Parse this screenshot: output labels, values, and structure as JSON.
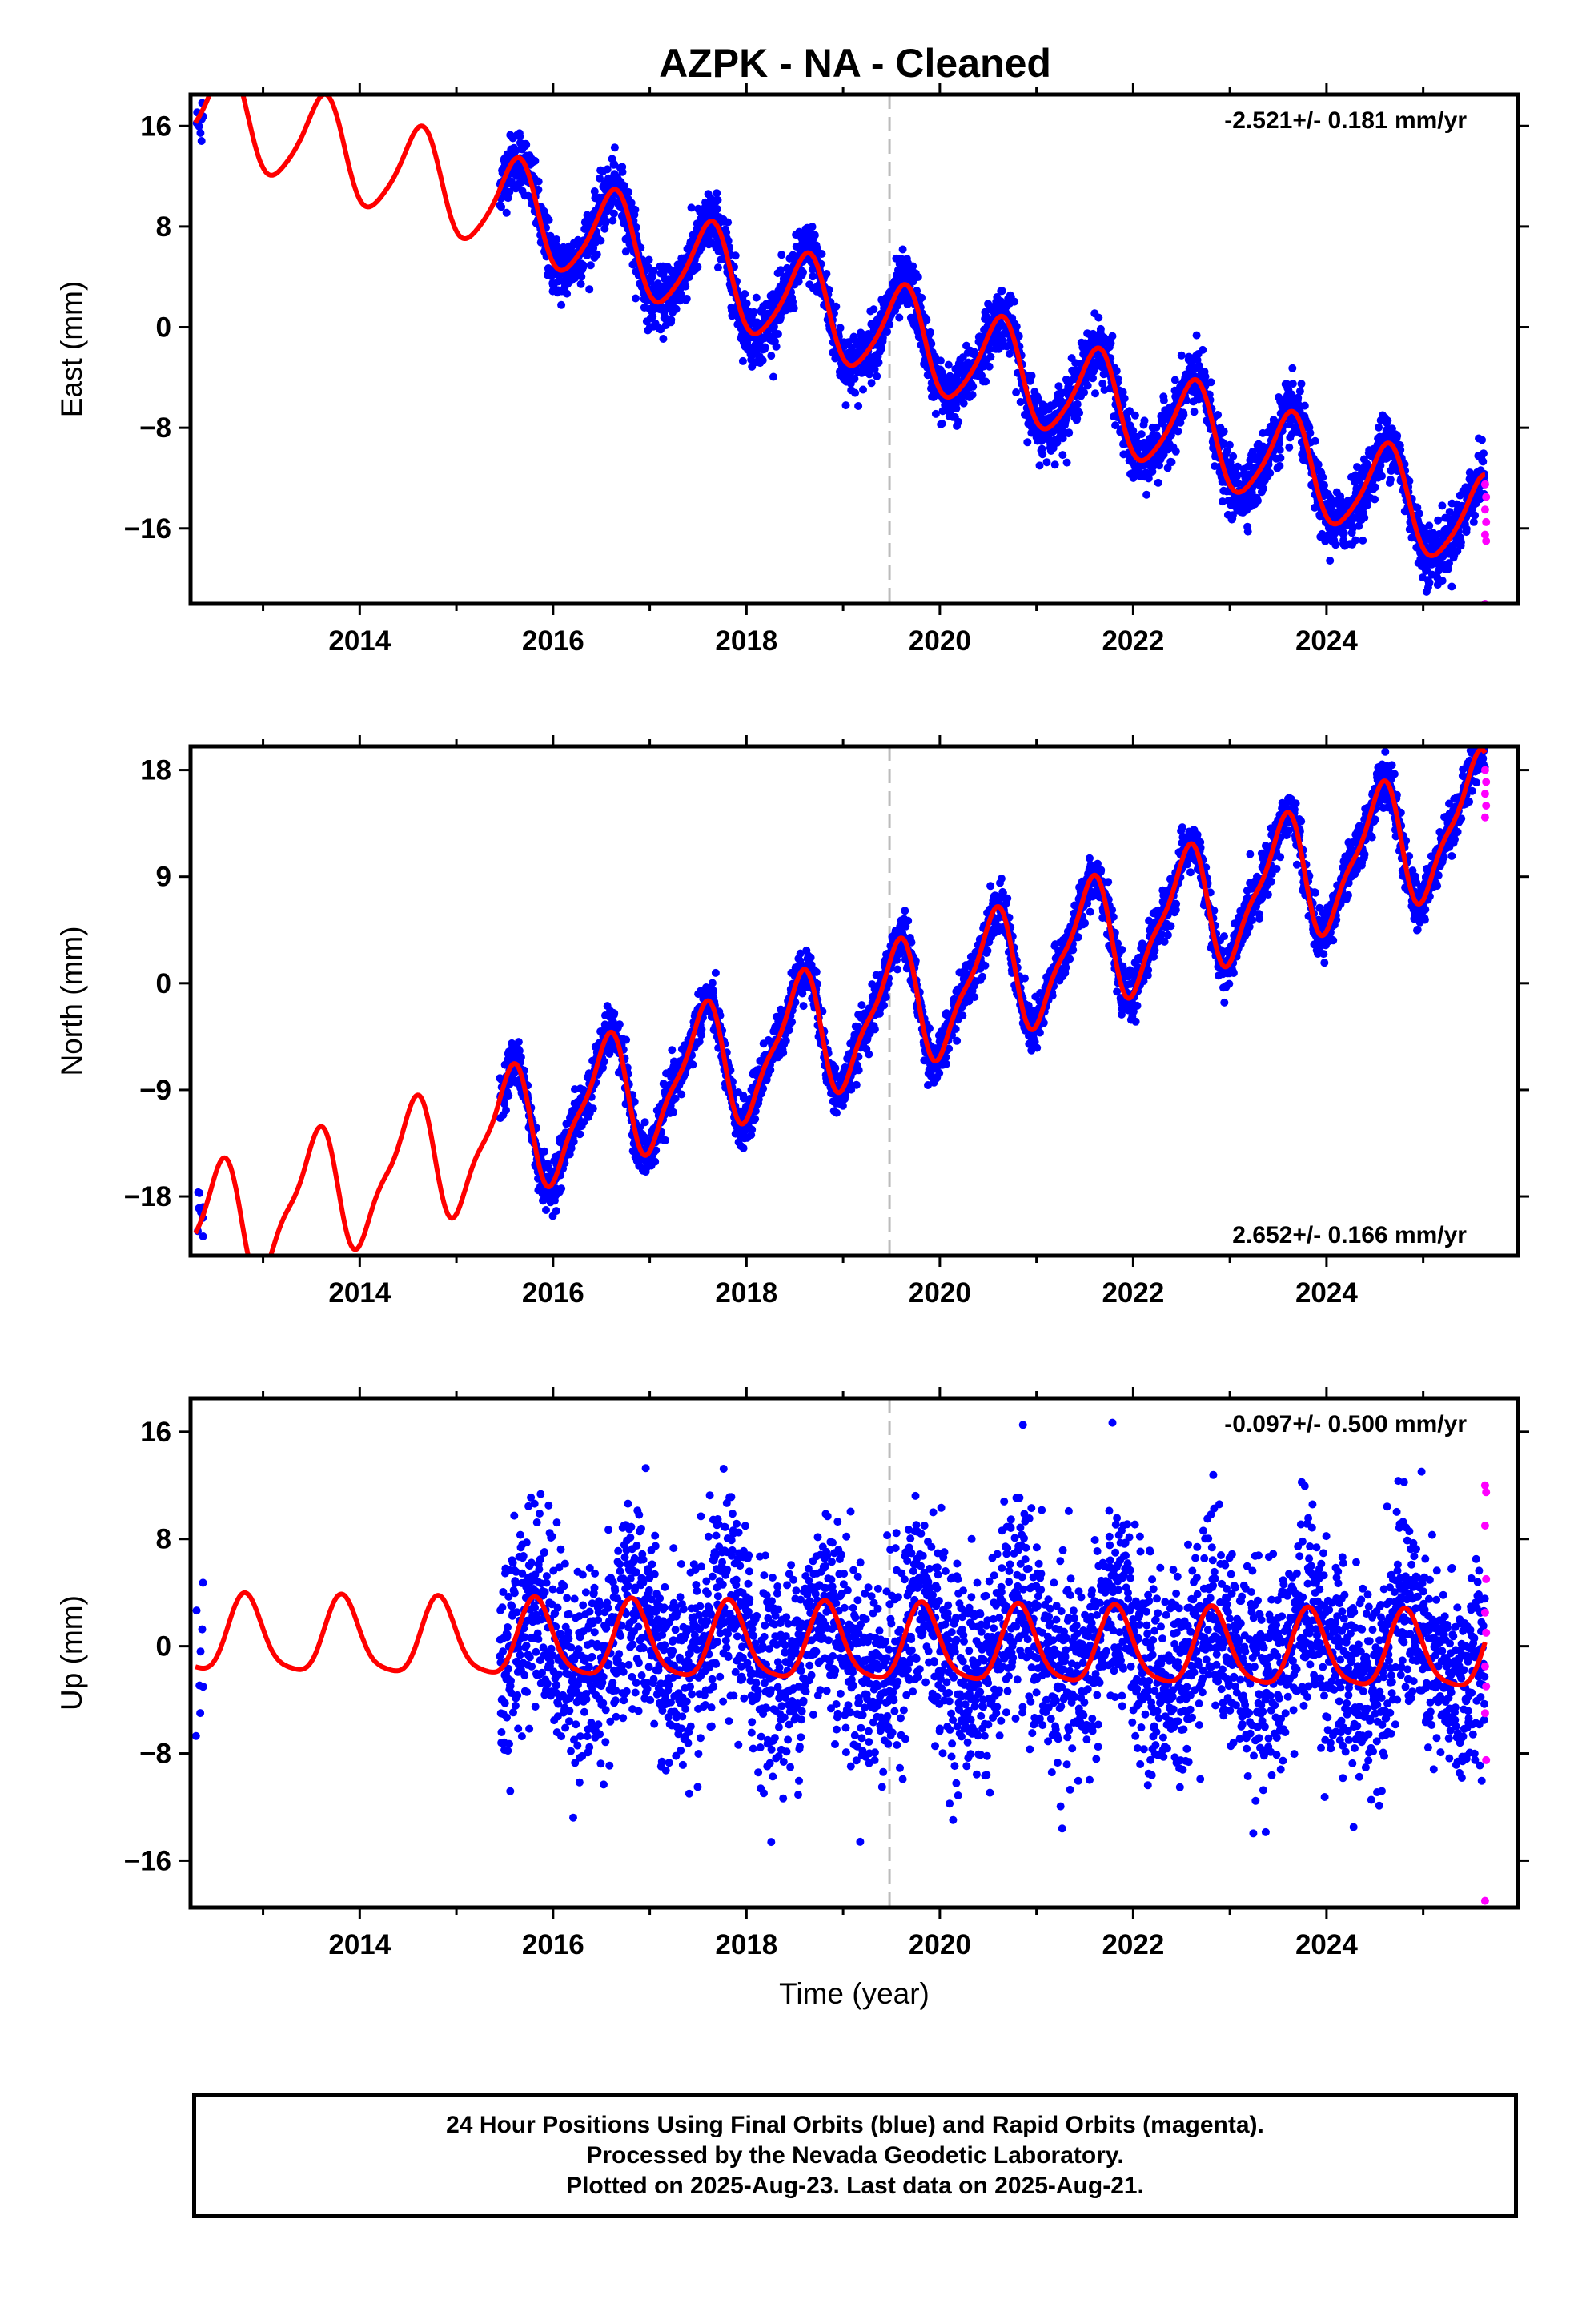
{
  "title": "AZPK  - NA - Cleaned",
  "caption": {
    "line1": "24 Hour Positions Using Final Orbits (blue) and Rapid Orbits (magenta).",
    "line2": "Processed by the Nevada Geodetic Laboratory.",
    "line3": "Plotted on 2025-Aug-23. Last data on 2025-Aug-21."
  },
  "colors": {
    "final_orbits": "#0000ff",
    "rapid_orbits": "#ff00ff",
    "model_fit": "#ff0000",
    "event_line": "#bbbbbb"
  },
  "chart_data": [
    {
      "type": "scatter",
      "name": "east",
      "xlabel": "",
      "ylabel": "East (mm)",
      "rate": "-2.521+/- 0.181 mm/yr",
      "rate_position": "top-right",
      "xlim": [
        2012.25,
        2025.98
      ],
      "ylim": [
        -22.0,
        18.5
      ],
      "xticks": [
        2014,
        2016,
        2018,
        2020,
        2022,
        2024
      ],
      "yticks": [
        16,
        8,
        0,
        -8,
        -16
      ],
      "ytick_labels": [
        "16",
        "8",
        "0",
        "−8",
        "−16"
      ],
      "event_line_x": 2019.48,
      "data_span": [
        2012.3,
        2025.64
      ],
      "final_gap": [
        2012.45,
        2015.45
      ],
      "model": {
        "offset_at_2019": 0.8,
        "rate": -2.521,
        "annual_amp": 3.8,
        "annual_phase_year": 0.62,
        "semiannual_amp": 0.6,
        "semiannual_phase_year": 0.2
      },
      "noise_sd": 1.2,
      "rapid": {
        "x_start": 2025.64,
        "x_end": 2025.65,
        "y_values": [
          -12.5,
          -13.5,
          -14.5,
          -15.5,
          -16.5,
          -17.0,
          -22.0
        ]
      }
    },
    {
      "type": "scatter",
      "name": "north",
      "xlabel": "",
      "ylabel": "North (mm)",
      "rate": "2.652+/- 0.166 mm/yr",
      "rate_position": "bottom-right",
      "xlim": [
        2012.25,
        2025.98
      ],
      "ylim": [
        -23.0,
        20.0
      ],
      "xticks": [
        2014,
        2016,
        2018,
        2020,
        2022,
        2024
      ],
      "yticks": [
        18,
        9,
        0,
        -9,
        -18
      ],
      "ytick_labels": [
        "18",
        "9",
        "0",
        "−9",
        "−18"
      ],
      "event_line_x": 2019.48,
      "data_span": [
        2012.3,
        2025.64
      ],
      "final_gap": [
        2012.45,
        2015.45
      ],
      "model": {
        "offset_at_2019": -3.5,
        "rate": 2.652,
        "annual_amp": 5.0,
        "annual_phase_year": 0.53,
        "semiannual_amp": 1.5,
        "semiannual_phase_year": 0.15
      },
      "noise_sd": 1.0,
      "rapid": {
        "x_start": 2025.64,
        "x_end": 2025.65,
        "y_values": [
          18.0,
          17.0,
          16.0,
          15.0,
          14.0
        ]
      }
    },
    {
      "type": "scatter",
      "name": "up",
      "xlabel": "Time (year)",
      "ylabel": "Up (mm)",
      "rate": "-0.097+/- 0.500 mm/yr",
      "rate_position": "top-right",
      "xlim": [
        2012.25,
        2025.98
      ],
      "ylim": [
        -19.5,
        18.5
      ],
      "xticks": [
        2014,
        2016,
        2018,
        2020,
        2022,
        2024
      ],
      "yticks": [
        16,
        8,
        0,
        -8,
        -16
      ],
      "ytick_labels": [
        "16",
        "8",
        "0",
        "−8",
        "−16"
      ],
      "event_line_x": 2019.48,
      "data_span": [
        2012.3,
        2025.64
      ],
      "final_gap": [
        2012.45,
        2015.45
      ],
      "model": {
        "offset_at_2019": 0.0,
        "rate": -0.097,
        "annual_amp": 2.8,
        "annual_phase_year": 0.82,
        "semiannual_amp": 0.6,
        "semiannual_phase_year": 0.3
      },
      "noise_sd": 3.8,
      "rapid": {
        "x_start": 2025.64,
        "x_end": 2025.65,
        "y_values": [
          12.0,
          11.5,
          9.0,
          5.0,
          2.5,
          1.0,
          -1.5,
          -3.0,
          -5.0,
          -8.5,
          -19.0
        ]
      }
    }
  ]
}
